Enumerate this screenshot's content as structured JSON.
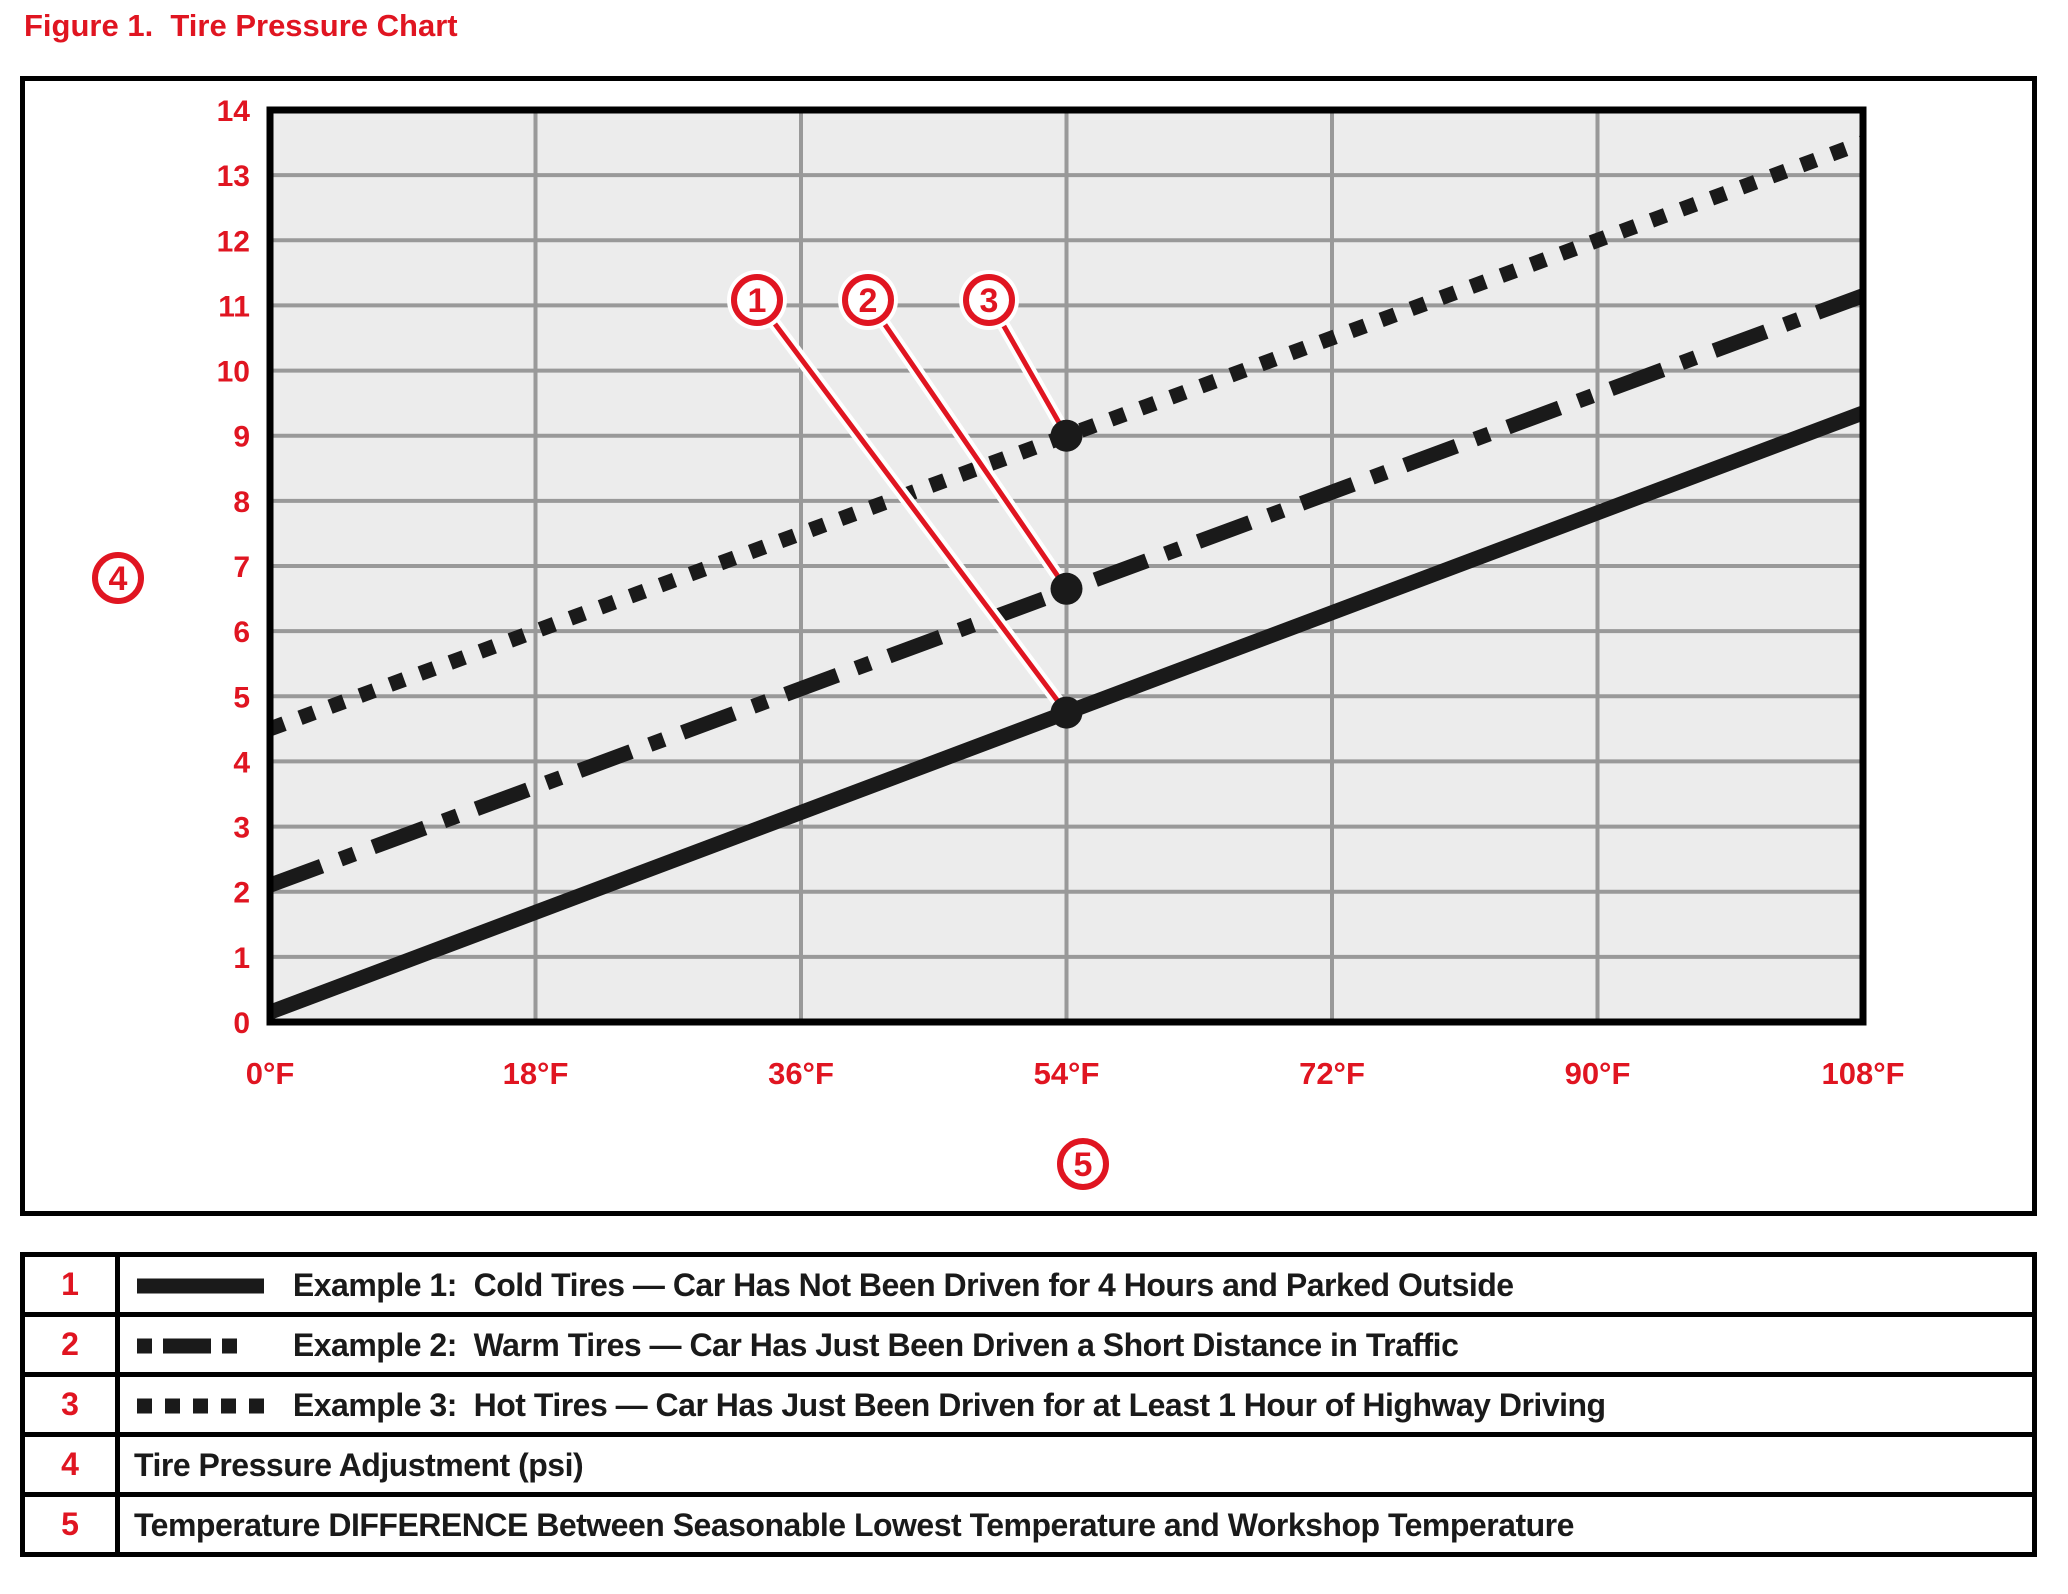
{
  "figure": {
    "title": "Figure 1.  Tire Pressure Chart"
  },
  "colors": {
    "red": "#e01521",
    "line_black": "#1a1a1a",
    "grid_gray": "#999999",
    "plot_bg": "#ececec",
    "border_black": "#000000"
  },
  "chart_data": {
    "type": "line",
    "title": "Tire Pressure Chart",
    "xlabel": "Temperature DIFFERENCE Between Seasonable Lowest Temperature and Workshop Temperature",
    "ylabel": "Tire Pressure Adjustment (psi)",
    "xlim": [
      0,
      108
    ],
    "ylim": [
      0,
      14
    ],
    "x_tick_values": [
      0,
      18,
      36,
      54,
      72,
      90,
      108
    ],
    "x_tick_labels": [
      "0°F",
      "18°F",
      "36°F",
      "54°F",
      "72°F",
      "90°F",
      "108°F"
    ],
    "y_tick_values": [
      0,
      1,
      2,
      3,
      4,
      5,
      6,
      7,
      8,
      9,
      10,
      11,
      12,
      13,
      14
    ],
    "grid": "horizontal every 1 psi, vertical every 18°F",
    "legend_position": "table below figure",
    "series": [
      {
        "name": "Example 1: Cold Tires",
        "style": "solid",
        "x": [
          0,
          108
        ],
        "y": [
          0.15,
          9.35
        ]
      },
      {
        "name": "Example 2: Warm Tires",
        "style": "dashdot",
        "x": [
          0,
          108
        ],
        "y": [
          2.1,
          11.15
        ]
      },
      {
        "name": "Example 3: Hot Tires",
        "style": "dotted",
        "x": [
          0,
          108
        ],
        "y": [
          4.5,
          13.5
        ]
      }
    ],
    "markers": [
      {
        "callout": "1",
        "series": "solid",
        "x": 54,
        "y": 4.75
      },
      {
        "callout": "2",
        "series": "dashdot",
        "x": 54,
        "y": 6.65
      },
      {
        "callout": "3",
        "series": "dotted",
        "x": 54,
        "y": 9.0
      }
    ],
    "y_axis_callout": "4",
    "x_axis_callout": "5"
  },
  "legend": {
    "rows": [
      {
        "num": "1",
        "swatch": "solid",
        "label": "Example 1:  Cold Tires — Car Has Not Been Driven for 4 Hours and Parked Outside"
      },
      {
        "num": "2",
        "swatch": "dashdot",
        "label": "Example 2:  Warm Tires — Car Has Just Been Driven a Short Distance in Traffic"
      },
      {
        "num": "3",
        "swatch": "dotted",
        "label": "Example 3:  Hot Tires — Car Has Just Been Driven for at Least 1 Hour of Highway Driving"
      },
      {
        "num": "4",
        "swatch": null,
        "label": "Tire Pressure Adjustment (psi)"
      },
      {
        "num": "5",
        "swatch": null,
        "label": "Temperature DIFFERENCE Between Seasonable Lowest Temperature and Workshop Temperature"
      }
    ]
  }
}
